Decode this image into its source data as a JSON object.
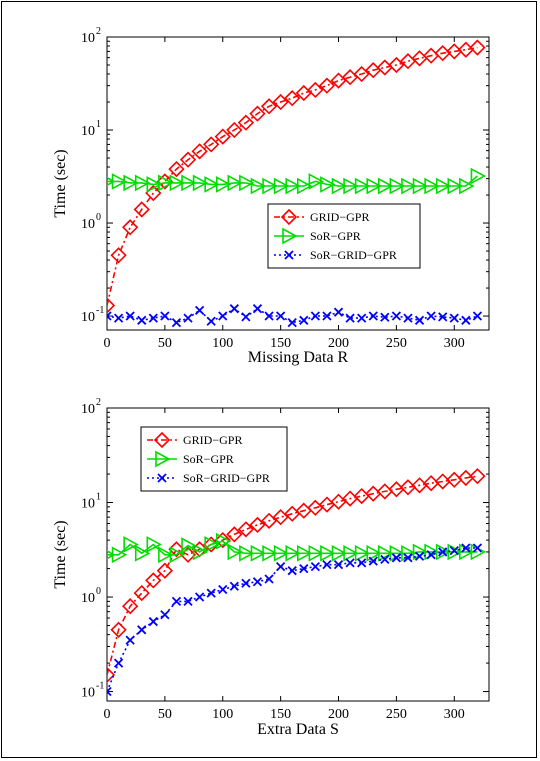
{
  "chart_data": [
    {
      "type": "line",
      "xlabel": "Missing Data R",
      "ylabel": "Time (sec)",
      "xlim": [
        0,
        330
      ],
      "ylim": [
        0.07,
        100
      ],
      "yscale": "log",
      "xticks": [
        "0",
        "50",
        "100",
        "150",
        "200",
        "250",
        "300"
      ],
      "yticks": [
        "10",
        "10",
        "10",
        "10"
      ],
      "yticks_exp": [
        "-1",
        "0",
        "1",
        "2"
      ],
      "legend_position": "center-right",
      "grid": false,
      "series": [
        {
          "name": "GRID−GPR",
          "color": "#ff0000",
          "marker": "diamond",
          "x": [
            0,
            10,
            20,
            30,
            40,
            50,
            60,
            70,
            80,
            90,
            100,
            110,
            120,
            130,
            140,
            150,
            160,
            170,
            180,
            190,
            200,
            210,
            220,
            230,
            240,
            250,
            260,
            270,
            280,
            290,
            300,
            310,
            320
          ],
          "y": [
            0.13,
            0.45,
            0.9,
            1.4,
            2.1,
            2.8,
            3.8,
            4.8,
            5.9,
            7.0,
            8.5,
            10,
            12,
            15,
            18,
            20,
            22,
            25,
            27,
            30,
            34,
            37,
            40,
            44,
            47,
            50,
            55,
            59,
            63,
            67,
            70,
            73,
            77
          ]
        },
        {
          "name": "SoR−GPR",
          "color": "#00dd00",
          "marker": "triangle-right",
          "x": [
            0,
            10,
            20,
            30,
            40,
            50,
            60,
            70,
            80,
            90,
            100,
            110,
            120,
            130,
            140,
            150,
            160,
            170,
            180,
            190,
            200,
            210,
            220,
            230,
            240,
            250,
            260,
            270,
            280,
            290,
            300,
            310,
            320
          ],
          "y": [
            2.8,
            2.8,
            2.7,
            2.7,
            2.6,
            2.7,
            2.7,
            2.7,
            2.7,
            2.6,
            2.6,
            2.7,
            2.7,
            2.5,
            2.5,
            2.5,
            2.5,
            2.5,
            2.8,
            2.6,
            2.5,
            2.5,
            2.5,
            2.5,
            2.5,
            2.5,
            2.5,
            2.5,
            2.5,
            2.5,
            2.5,
            2.5,
            3.2
          ]
        },
        {
          "name": "SoR−GRID−GPR",
          "color": "#0000ff",
          "marker": "x",
          "x": [
            0,
            10,
            20,
            30,
            40,
            50,
            60,
            70,
            80,
            90,
            100,
            110,
            120,
            130,
            140,
            150,
            160,
            170,
            180,
            190,
            200,
            210,
            220,
            230,
            240,
            250,
            260,
            270,
            280,
            290,
            300,
            310,
            320
          ],
          "y": [
            0.1,
            0.095,
            0.1,
            0.09,
            0.095,
            0.1,
            0.085,
            0.095,
            0.115,
            0.088,
            0.1,
            0.12,
            0.098,
            0.12,
            0.1,
            0.1,
            0.085,
            0.09,
            0.1,
            0.1,
            0.11,
            0.095,
            0.095,
            0.1,
            0.097,
            0.1,
            0.095,
            0.09,
            0.1,
            0.098,
            0.095,
            0.09,
            0.1
          ]
        }
      ]
    },
    {
      "type": "line",
      "xlabel": "Extra Data S",
      "ylabel": "Time (sec)",
      "xlim": [
        0,
        330
      ],
      "ylim": [
        0.08,
        100
      ],
      "yscale": "log",
      "xticks": [
        "0",
        "50",
        "100",
        "150",
        "200",
        "250",
        "300"
      ],
      "yticks": [
        "10",
        "10",
        "10",
        "10"
      ],
      "yticks_exp": [
        "-1",
        "0",
        "1",
        "2"
      ],
      "legend_position": "top-left",
      "grid": false,
      "series": [
        {
          "name": "GRID−GPR",
          "color": "#ff0000",
          "marker": "diamond",
          "x": [
            0,
            10,
            20,
            30,
            40,
            50,
            60,
            70,
            80,
            90,
            100,
            110,
            120,
            130,
            140,
            150,
            160,
            170,
            180,
            190,
            200,
            210,
            220,
            230,
            240,
            250,
            260,
            270,
            280,
            290,
            300,
            310,
            320
          ],
          "y": [
            0.15,
            0.45,
            0.8,
            1.1,
            1.5,
            1.9,
            3.2,
            2.8,
            3.2,
            3.6,
            4.0,
            4.6,
            5.2,
            5.8,
            6.4,
            7.0,
            7.6,
            8.2,
            8.8,
            9.5,
            10.2,
            11,
            11.7,
            12.4,
            13.1,
            13.8,
            14.5,
            15.2,
            16,
            16.7,
            17.4,
            18.2,
            19
          ]
        },
        {
          "name": "SoR−GPR",
          "color": "#00dd00",
          "marker": "triangle-right",
          "x": [
            0,
            10,
            20,
            30,
            40,
            50,
            60,
            70,
            80,
            90,
            100,
            110,
            120,
            130,
            140,
            150,
            160,
            170,
            180,
            190,
            200,
            210,
            220,
            230,
            240,
            250,
            260,
            270,
            280,
            290,
            300,
            310,
            320
          ],
          "y": [
            2.8,
            2.8,
            3.6,
            2.9,
            3.6,
            2.8,
            2.8,
            3.5,
            3.0,
            3.6,
            3.9,
            3.0,
            2.9,
            2.9,
            2.9,
            2.9,
            2.9,
            2.9,
            2.9,
            2.9,
            2.9,
            2.9,
            2.9,
            2.9,
            2.9,
            2.9,
            2.9,
            3.0,
            3.0,
            3.0,
            3.0,
            3.0,
            3.0
          ]
        },
        {
          "name": "SoR−GRID−GPR",
          "color": "#0000ff",
          "marker": "x",
          "x": [
            0,
            10,
            20,
            30,
            40,
            50,
            60,
            70,
            80,
            90,
            100,
            110,
            120,
            130,
            140,
            150,
            160,
            170,
            180,
            190,
            200,
            210,
            220,
            230,
            240,
            250,
            260,
            270,
            280,
            290,
            300,
            310,
            320
          ],
          "y": [
            0.1,
            0.2,
            0.35,
            0.45,
            0.55,
            0.65,
            0.9,
            0.9,
            1.0,
            1.1,
            1.2,
            1.3,
            1.4,
            1.45,
            1.55,
            2.1,
            1.9,
            2.0,
            2.1,
            2.2,
            2.2,
            2.3,
            2.3,
            2.4,
            2.5,
            2.6,
            2.6,
            2.7,
            2.8,
            3.0,
            3.1,
            3.3,
            3.3
          ]
        }
      ]
    }
  ]
}
